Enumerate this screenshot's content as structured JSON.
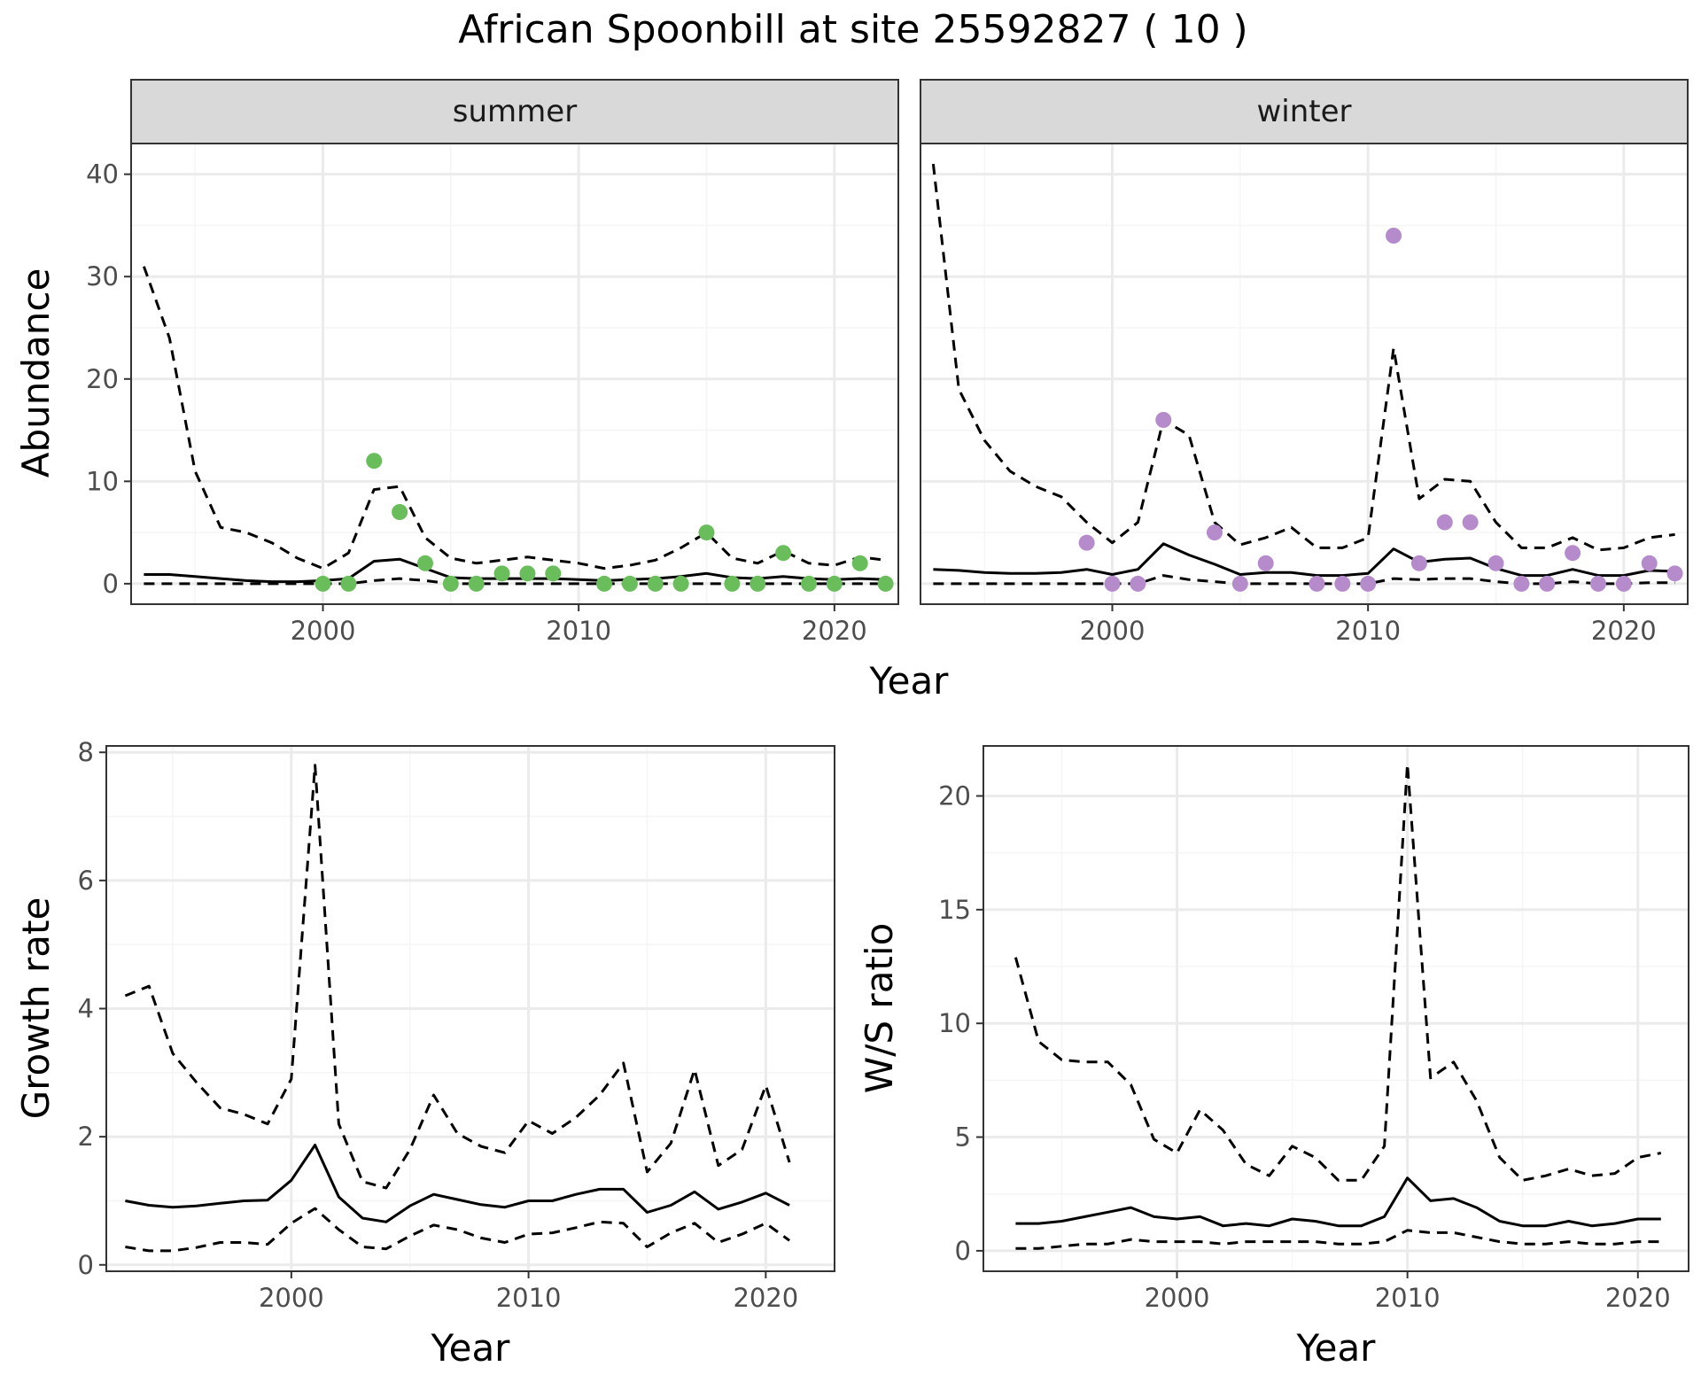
{
  "title": "African Spoonbill at site 25592827 ( 10 )",
  "colors": {
    "summer_points": "#6ABD5B",
    "winter_points": "#B68BCB",
    "lines": "#000000",
    "grid_major": "#EBEBEB",
    "grid_minor": "#F5F5F5",
    "strip_fill": "#D9D9D9"
  },
  "chart_data": [
    {
      "type": "line",
      "panel": "abundance",
      "xlabel": "Year",
      "ylabel": "Abundance",
      "xlim": [
        1992.5,
        2022.5
      ],
      "ylim": [
        -2,
        43
      ],
      "x_ticks": [
        "2000",
        "2010",
        "2020"
      ],
      "y_ticks": [
        "0",
        "10",
        "20",
        "30",
        "40"
      ],
      "facets": [
        {
          "strip": "summer",
          "years": [
            1993,
            1994,
            1995,
            1996,
            1997,
            1998,
            1999,
            2000,
            2001,
            2002,
            2003,
            2004,
            2005,
            2006,
            2007,
            2008,
            2009,
            2010,
            2011,
            2012,
            2013,
            2014,
            2015,
            2016,
            2017,
            2018,
            2019,
            2020,
            2021,
            2022
          ],
          "fit": [
            0.9,
            0.9,
            0.7,
            0.5,
            0.3,
            0.2,
            0.2,
            0.3,
            0.5,
            2.2,
            2.4,
            1.5,
            0.6,
            0.5,
            0.5,
            0.5,
            0.5,
            0.4,
            0.3,
            0.4,
            0.5,
            0.7,
            1.0,
            0.6,
            0.5,
            0.7,
            0.5,
            0.4,
            0.5,
            0.4
          ],
          "upper": [
            31,
            24,
            11,
            5.5,
            5,
            4,
            2.5,
            1.5,
            3,
            9.2,
            9.5,
            4.5,
            2.5,
            2,
            2.3,
            2.6,
            2.3,
            2,
            1.5,
            1.8,
            2.3,
            3.5,
            5,
            2.5,
            2,
            3.2,
            2,
            1.8,
            2.6,
            2.3
          ],
          "lower": [
            0,
            0,
            0,
            0,
            0,
            0,
            0,
            0,
            0,
            0.3,
            0.5,
            0.3,
            0,
            0,
            0,
            0,
            0,
            0,
            0,
            0,
            0,
            0,
            0,
            0,
            0,
            0,
            0,
            0,
            0,
            0
          ],
          "obs_years": [
            2000,
            2001,
            2002,
            2003,
            2004,
            2005,
            2006,
            2007,
            2008,
            2009,
            2011,
            2012,
            2013,
            2014,
            2015,
            2016,
            2017,
            2018,
            2019,
            2020,
            2021,
            2022
          ],
          "observed": [
            0,
            0,
            12,
            7,
            2,
            0,
            0,
            1,
            1,
            1,
            0,
            0,
            0,
            0,
            5,
            0,
            0,
            3,
            0,
            0,
            2,
            0
          ]
        },
        {
          "strip": "winter",
          "years": [
            1993,
            1994,
            1995,
            1996,
            1997,
            1998,
            1999,
            2000,
            2001,
            2002,
            2003,
            2004,
            2005,
            2006,
            2007,
            2008,
            2009,
            2010,
            2011,
            2012,
            2013,
            2014,
            2015,
            2016,
            2017,
            2018,
            2019,
            2020,
            2021,
            2022
          ],
          "fit": [
            1.4,
            1.3,
            1.1,
            1.0,
            1.0,
            1.1,
            1.4,
            0.9,
            1.4,
            3.9,
            2.8,
            1.9,
            0.9,
            1.1,
            1.1,
            0.8,
            0.8,
            1.0,
            3.4,
            2.1,
            2.4,
            2.5,
            1.5,
            0.8,
            0.8,
            1.4,
            0.8,
            0.8,
            1.3,
            1.2
          ],
          "upper": [
            41,
            19,
            14,
            11,
            9.5,
            8.5,
            6,
            4,
            6,
            16,
            14.5,
            6,
            3.8,
            4.5,
            5.5,
            3.5,
            3.5,
            4.5,
            23,
            8.3,
            10.2,
            10,
            6,
            3.5,
            3.5,
            4.5,
            3.3,
            3.5,
            4.5,
            4.8
          ],
          "lower": [
            0,
            0,
            0,
            0,
            0,
            0,
            0,
            0,
            0,
            0.8,
            0.4,
            0.2,
            0,
            0,
            0,
            0,
            0,
            0,
            0.5,
            0.4,
            0.5,
            0.5,
            0.2,
            0,
            0,
            0.2,
            0,
            0,
            0.1,
            0.1
          ],
          "obs_years": [
            1999,
            2000,
            2001,
            2002,
            2004,
            2005,
            2006,
            2008,
            2009,
            2010,
            2011,
            2012,
            2013,
            2014,
            2015,
            2016,
            2017,
            2018,
            2019,
            2020,
            2021,
            2022
          ],
          "observed": [
            4,
            0,
            0,
            16,
            5,
            0,
            2,
            0,
            0,
            0,
            34,
            2,
            6,
            6,
            2,
            0,
            0,
            3,
            0,
            0,
            2,
            1
          ]
        }
      ]
    },
    {
      "type": "line",
      "panel": "growth-rate",
      "xlabel": "Year",
      "ylabel": "Growth rate",
      "xlim": [
        1992.2,
        2022.9
      ],
      "ylim": [
        -0.1,
        8.1
      ],
      "x_ticks": [
        "2000",
        "2010",
        "2020"
      ],
      "y_ticks": [
        "0",
        "2",
        "4",
        "6",
        "8"
      ],
      "years": [
        1993,
        1994,
        1995,
        1996,
        1997,
        1998,
        1999,
        2000,
        2001,
        2002,
        2003,
        2004,
        2005,
        2006,
        2007,
        2008,
        2009,
        2010,
        2011,
        2012,
        2013,
        2014,
        2015,
        2016,
        2017,
        2018,
        2019,
        2020,
        2021
      ],
      "fit": [
        1.0,
        0.93,
        0.9,
        0.92,
        0.96,
        1.0,
        1.01,
        1.32,
        1.87,
        1.06,
        0.73,
        0.67,
        0.92,
        1.1,
        1.02,
        0.94,
        0.9,
        1.0,
        1.0,
        1.1,
        1.18,
        1.18,
        0.82,
        0.93,
        1.14,
        0.87,
        0.98,
        1.12,
        0.93
      ],
      "upper": [
        4.2,
        4.35,
        3.3,
        2.85,
        2.45,
        2.35,
        2.2,
        2.9,
        7.8,
        2.2,
        1.3,
        1.2,
        1.8,
        2.65,
        2.05,
        1.85,
        1.75,
        2.25,
        2.05,
        2.3,
        2.65,
        3.15,
        1.45,
        1.9,
        3.05,
        1.55,
        1.8,
        2.8,
        1.6
      ],
      "lower": [
        0.28,
        0.22,
        0.22,
        0.27,
        0.35,
        0.35,
        0.32,
        0.65,
        0.88,
        0.55,
        0.28,
        0.25,
        0.45,
        0.62,
        0.55,
        0.42,
        0.35,
        0.48,
        0.5,
        0.58,
        0.67,
        0.65,
        0.28,
        0.5,
        0.65,
        0.35,
        0.48,
        0.65,
        0.38
      ]
    },
    {
      "type": "line",
      "panel": "ws-ratio",
      "xlabel": "Year",
      "ylabel": "W/S ratio",
      "xlim": [
        1991.6,
        2022.2
      ],
      "ylim": [
        -0.9,
        22.2
      ],
      "x_ticks": [
        "2000",
        "2010",
        "2020"
      ],
      "y_ticks": [
        "0",
        "5",
        "10",
        "15",
        "20"
      ],
      "years": [
        1993,
        1994,
        1995,
        1996,
        1997,
        1998,
        1999,
        2000,
        2001,
        2002,
        2003,
        2004,
        2005,
        2006,
        2007,
        2008,
        2009,
        2010,
        2011,
        2012,
        2013,
        2014,
        2015,
        2016,
        2017,
        2018,
        2019,
        2020,
        2021
      ],
      "fit": [
        1.2,
        1.2,
        1.3,
        1.5,
        1.7,
        1.9,
        1.5,
        1.4,
        1.5,
        1.1,
        1.2,
        1.1,
        1.4,
        1.3,
        1.1,
        1.1,
        1.5,
        3.2,
        2.2,
        2.3,
        1.9,
        1.3,
        1.1,
        1.1,
        1.3,
        1.1,
        1.2,
        1.4,
        1.4
      ],
      "upper": [
        12.9,
        9.2,
        8.4,
        8.3,
        8.3,
        7.3,
        4.9,
        4.3,
        6.2,
        5.3,
        3.8,
        3.3,
        4.6,
        4.1,
        3.1,
        3.1,
        4.6,
        21.4,
        7.6,
        8.3,
        6.6,
        4.1,
        3.1,
        3.3,
        3.6,
        3.3,
        3.4,
        4.1,
        4.3
      ],
      "lower": [
        0.1,
        0.1,
        0.2,
        0.3,
        0.3,
        0.5,
        0.4,
        0.4,
        0.4,
        0.3,
        0.4,
        0.4,
        0.4,
        0.4,
        0.3,
        0.3,
        0.4,
        0.9,
        0.8,
        0.8,
        0.6,
        0.4,
        0.3,
        0.3,
        0.4,
        0.3,
        0.3,
        0.4,
        0.4
      ]
    }
  ]
}
